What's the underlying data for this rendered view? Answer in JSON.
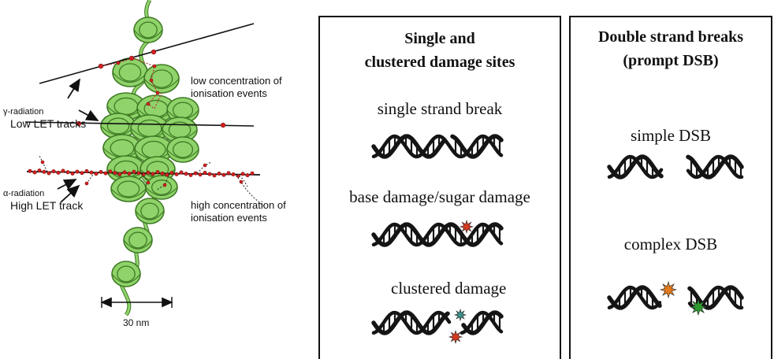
{
  "left": {
    "gamma_label": "γ-radiation",
    "low_let_label": "Low LET tracks",
    "low_conc_line1": "low concentration of",
    "low_conc_line2": "ionisation events",
    "alpha_label": "α-radiation",
    "high_let_label": "High LET track",
    "high_conc_line1": "high concentration of",
    "high_conc_line2": "ionisation events",
    "scale_label": "30 nm"
  },
  "middle": {
    "title_line1": "Single and",
    "title_line2": "clustered damage sites",
    "ssb_label": "single strand break",
    "base_label": "base damage/sugar damage",
    "clustered_label": "clustered damage"
  },
  "right": {
    "title_line1": "Double strand breaks",
    "title_line2": "(prompt DSB)",
    "simple_label": "simple DSB",
    "complex_label": "complex DSB"
  },
  "colors": {
    "chromatin": "#8fd36a",
    "chromatin_stroke": "#3f7a24",
    "track": "#111111",
    "ionisation": "#d62020",
    "dna": "#151515",
    "damage_red": "#d43a1f",
    "damage_teal": "#3f8f8a",
    "damage_orange": "#e07a1c",
    "damage_green": "#2e9a2e"
  }
}
